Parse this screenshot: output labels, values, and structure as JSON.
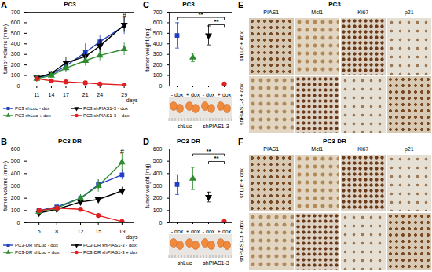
{
  "chart_data": [
    {
      "type": "line",
      "panel": "A",
      "title": "PC3",
      "xlabel": "days",
      "ylabel": "tumor volume (mm³)",
      "x": [
        11,
        14,
        17,
        21,
        24,
        29
      ],
      "xlim": [
        9,
        31
      ],
      "xticks": [
        11,
        14,
        17,
        21,
        24,
        29
      ],
      "ylim": [
        0,
        700
      ],
      "yticks": [
        0,
        100,
        200,
        300,
        400,
        500,
        600,
        700
      ],
      "series": [
        {
          "name": "PC3 shLuc - dox",
          "color": "#2040c0",
          "marker": "square",
          "values": [
            75,
            110,
            190,
            320,
            420,
            570
          ],
          "errors": [
            15,
            20,
            50,
            80,
            60,
            80
          ]
        },
        {
          "name": "PC3 shPIAS1-3 - dox",
          "color": "#000000",
          "marker": "triangle-down",
          "values": [
            80,
            120,
            220,
            280,
            380,
            580
          ],
          "errors": [
            10,
            20,
            50,
            40,
            60,
            70
          ]
        },
        {
          "name": "PC3 shLuc + dox",
          "color": "#2e8b2e",
          "marker": "triangle",
          "values": [
            70,
            100,
            170,
            240,
            290,
            350
          ],
          "errors": [
            10,
            15,
            40,
            50,
            50,
            60
          ]
        },
        {
          "name": "PC3 shPIAS1-3 + dox",
          "color": "#e02020",
          "marker": "circle",
          "values": [
            70,
            50,
            40,
            30,
            20,
            10
          ],
          "errors": [
            10,
            10,
            10,
            5,
            5,
            5
          ]
        }
      ],
      "annotations": [
        {
          "text": "#",
          "x": 29,
          "y": 665
        }
      ],
      "legend": "bottom"
    },
    {
      "type": "line",
      "panel": "B",
      "title": "PC3-DR",
      "xlabel": "days",
      "ylabel": "tumor volume (mm³)",
      "x": [
        5,
        8,
        12,
        15,
        19
      ],
      "xlim": [
        3,
        21
      ],
      "xticks": [
        5,
        8,
        12,
        15,
        19
      ],
      "ylim": [
        0,
        600
      ],
      "yticks": [
        0,
        100,
        200,
        300,
        400,
        500,
        600
      ],
      "series": [
        {
          "name": "PC3-DR shLuc - dox",
          "color": "#2040c0",
          "marker": "square",
          "values": [
            100,
            130,
            200,
            310,
            390
          ],
          "errors": [
            10,
            15,
            30,
            40,
            40
          ]
        },
        {
          "name": "PC3-DR shPIAS1-3 - dox",
          "color": "#000000",
          "marker": "triangle-down",
          "values": [
            80,
            110,
            170,
            190,
            260
          ],
          "errors": [
            10,
            15,
            20,
            20,
            30
          ]
        },
        {
          "name": "PC3-DR shLuc + dox",
          "color": "#2e8b2e",
          "marker": "triangle",
          "values": [
            90,
            120,
            200,
            300,
            490
          ],
          "errors": [
            10,
            15,
            30,
            50,
            70
          ]
        },
        {
          "name": "PC3-DR shPIAS1-3 + dox",
          "color": "#e02020",
          "marker": "circle",
          "values": [
            100,
            120,
            110,
            60,
            10
          ],
          "errors": [
            10,
            15,
            15,
            10,
            5
          ]
        }
      ],
      "annotations": [
        {
          "text": "#",
          "x": 19,
          "y": 575
        }
      ],
      "legend": "bottom"
    },
    {
      "type": "scatter",
      "panel": "C",
      "title": "PC3",
      "ylabel": "tumor weight (mg)",
      "categories": [
        "- dox",
        "+ dox",
        "- dox",
        "+ dox"
      ],
      "ylim": [
        0,
        700
      ],
      "yticks": [
        0,
        100,
        200,
        300,
        400,
        500,
        600,
        700
      ],
      "series": [
        {
          "color": "#2040c0",
          "marker": "square",
          "values": [
            480,
            null,
            null,
            null
          ],
          "errors": [
            120,
            null,
            null,
            null
          ]
        },
        {
          "color": "#2e8b2e",
          "marker": "triangle",
          "values": [
            null,
            270,
            null,
            null
          ],
          "errors": [
            null,
            40,
            null,
            null
          ]
        },
        {
          "color": "#000000",
          "marker": "triangle-down",
          "values": [
            null,
            null,
            480,
            null
          ],
          "errors": [
            null,
            null,
            90,
            null
          ]
        },
        {
          "color": "#e02020",
          "marker": "circle",
          "values": [
            null,
            null,
            null,
            20
          ],
          "errors": [
            null,
            null,
            null,
            10
          ]
        }
      ],
      "significance": [
        {
          "from": 0,
          "to": 3,
          "label": "**"
        },
        {
          "from": 2,
          "to": 3,
          "label": "**"
        }
      ],
      "groups": [
        {
          "label": "shLuc",
          "from": 0,
          "to": 1
        },
        {
          "label": "shPIAS1-3",
          "from": 2,
          "to": 3
        }
      ]
    },
    {
      "type": "scatter",
      "panel": "D",
      "title": "PC3-DR",
      "ylabel": "tumor weight (mg)",
      "categories": [
        "- dox",
        "+ dox",
        "- dox",
        "+ dox"
      ],
      "ylim": [
        0,
        600
      ],
      "yticks": [
        0,
        100,
        200,
        300,
        400,
        500,
        600
      ],
      "series": [
        {
          "color": "#2040c0",
          "marker": "square",
          "values": [
            310,
            null,
            null,
            null
          ],
          "errors": [
            80,
            null,
            null,
            null
          ]
        },
        {
          "color": "#2e8b2e",
          "marker": "triangle",
          "values": [
            null,
            360,
            null,
            null
          ],
          "errors": [
            null,
            90,
            null,
            null
          ]
        },
        {
          "color": "#000000",
          "marker": "triangle-down",
          "values": [
            null,
            null,
            210,
            null
          ],
          "errors": [
            null,
            null,
            40,
            null
          ]
        },
        {
          "color": "#e02020",
          "marker": "circle",
          "values": [
            null,
            null,
            null,
            10
          ],
          "errors": [
            null,
            null,
            null,
            5
          ]
        }
      ],
      "significance": [
        {
          "from": 1,
          "to": 3,
          "label": "**"
        },
        {
          "from": 2,
          "to": 3,
          "label": "**"
        }
      ],
      "groups": [
        {
          "label": "shLuc",
          "from": 0,
          "to": 1
        },
        {
          "label": "shPIAS1-3",
          "from": 2,
          "to": 3
        }
      ]
    }
  ],
  "image_panels": [
    {
      "panel": "E",
      "title": "PC3",
      "columns": [
        "PIAS1",
        "Mcl1",
        "Ki67",
        "p21"
      ],
      "rows": [
        "shLuc + dox",
        "shPIAS1-3 + dox"
      ]
    },
    {
      "panel": "F",
      "title": "PC3-DR",
      "columns": [
        "PIAS1",
        "Mcl1",
        "Ki67",
        "p21"
      ],
      "rows": [
        "shLuc + dox",
        "shPIAS1-3 + dox"
      ]
    }
  ]
}
